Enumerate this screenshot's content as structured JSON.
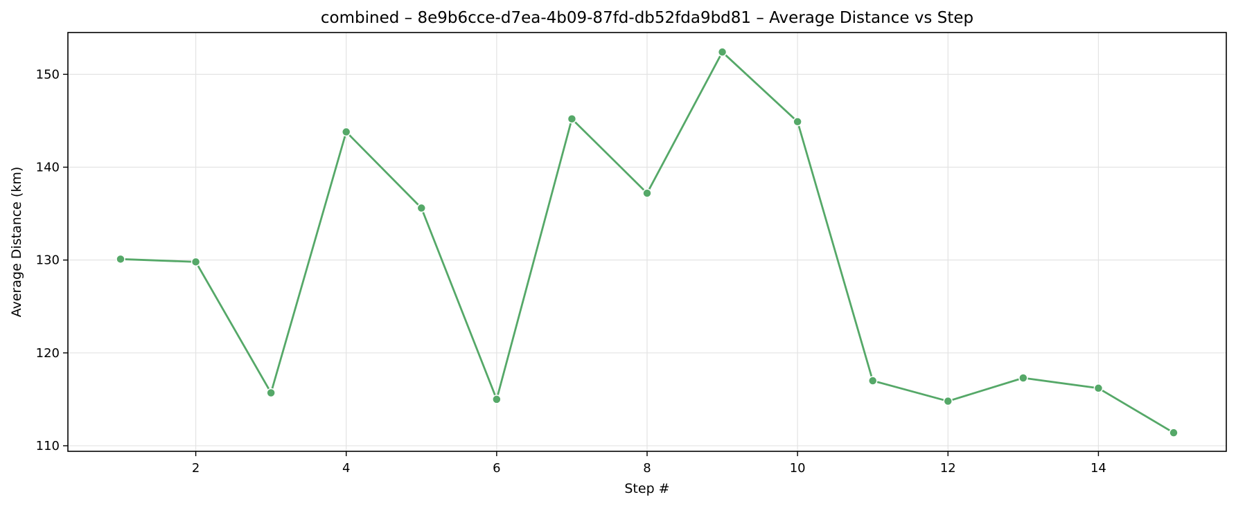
{
  "chart_data": {
    "type": "line",
    "title": "combined – 8e9b6cce-d7ea-4b09-87fd-db52fda9bd81 – Average Distance vs Step",
    "xlabel": "Step #",
    "ylabel": "Average Distance (km)",
    "x": [
      1,
      2,
      3,
      4,
      5,
      6,
      7,
      8,
      9,
      10,
      11,
      12,
      13,
      14,
      15
    ],
    "series": [
      {
        "values": [
          130.1,
          129.8,
          115.7,
          143.8,
          135.6,
          115.0,
          145.2,
          137.2,
          152.4,
          144.9,
          117.0,
          114.8,
          117.3,
          116.2,
          111.4
        ],
        "color": "#55a868"
      }
    ],
    "xlim": [
      0.3,
      15.7
    ],
    "ylim": [
      109.4,
      154.5
    ],
    "xticks": [
      2,
      4,
      6,
      8,
      10,
      12,
      14
    ],
    "xtick_labels": [
      "2",
      "4",
      "6",
      "8",
      "10",
      "12",
      "14"
    ],
    "yticks": [
      110,
      120,
      130,
      140,
      150
    ],
    "ytick_labels": [
      "110",
      "120",
      "130",
      "140",
      "150"
    ],
    "grid": true,
    "marker": "circle"
  }
}
